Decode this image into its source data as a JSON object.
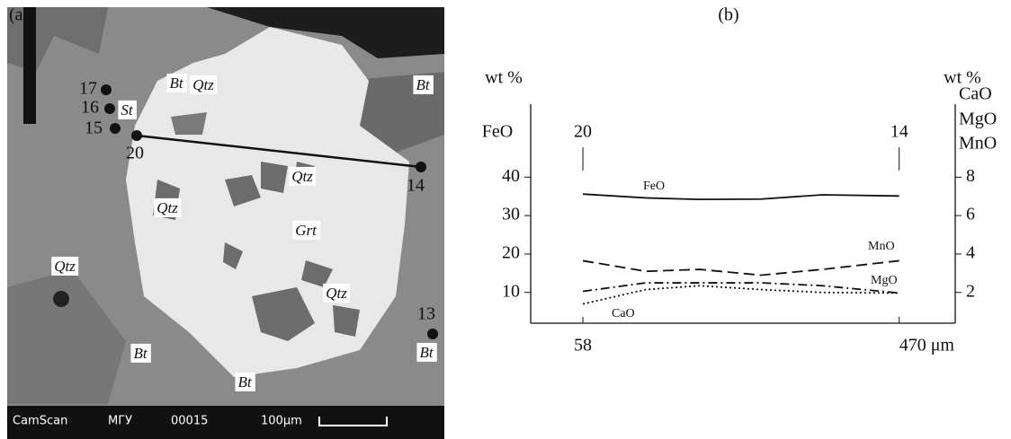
{
  "micrograph": {
    "panel": "(a)",
    "points": [
      "17",
      "16",
      "15",
      "20",
      "14",
      "13"
    ],
    "minerals": [
      "St",
      "Qtz",
      "Bt",
      "Qtz",
      "Grt",
      "Qtz",
      "Qtz",
      "Qtz",
      "Bt",
      "Bt",
      "Bt",
      "Bt"
    ],
    "footer": [
      "CamScan",
      "МГУ",
      "00015",
      "100μm"
    ]
  },
  "chart_data": {
    "type": "line",
    "panel": "(b)",
    "y_label": [
      "wt %",
      "FeO"
    ],
    "y2_label": [
      "wt %",
      "CaO",
      "MgO",
      "MnO"
    ],
    "annotations": [
      "20",
      "14"
    ],
    "x": [
      58,
      140,
      210,
      290,
      370,
      470
    ],
    "xlim": [
      -10,
      543
    ],
    "xticks": [
      58,
      {
        "value": 470,
        "label": "470 μm"
      }
    ],
    "ylim": [
      2,
      59
    ],
    "yticks": [
      10,
      20,
      30,
      40
    ],
    "y2lim": [
      0.4,
      11.8
    ],
    "y2ticks": [
      2,
      4,
      6,
      8
    ],
    "series": [
      {
        "name": "FeO",
        "color": "#111111",
        "style": "solid",
        "values": [
          35.6,
          34.6,
          34.2,
          34.3,
          35.4,
          35.1
        ]
      },
      {
        "name": "MnO",
        "color": "#111111",
        "style": "dashed",
        "axis": "y2",
        "values": [
          3.65,
          3.1,
          3.2,
          2.9,
          3.2,
          3.65
        ]
      },
      {
        "name": "MgO",
        "color": "#111111",
        "style": "dashdot",
        "axis": "y2",
        "values": [
          2.06,
          2.5,
          2.5,
          2.5,
          2.35,
          1.97
        ]
      },
      {
        "name": "CaO",
        "color": "#111111",
        "style": "dotted",
        "axis": "y2",
        "values": [
          1.4,
          2.15,
          2.35,
          2.15,
          2.0,
          1.97
        ]
      }
    ]
  }
}
